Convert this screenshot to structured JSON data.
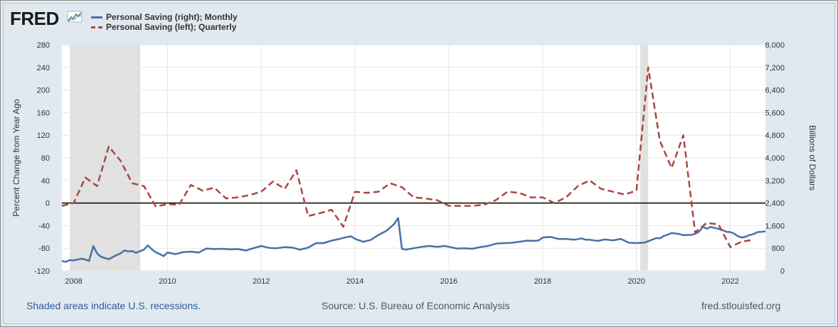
{
  "brand": {
    "name": "FRED"
  },
  "legend": [
    {
      "label": "Personal Saving (right); Monthly",
      "color": "#4572a7",
      "style": "solid"
    },
    {
      "label": "Personal Saving (left); Quarterly",
      "color": "#aa4643",
      "style": "dashed"
    }
  ],
  "footer": {
    "left": "Shaded areas indicate U.S. recessions.",
    "center": "Source: U.S. Bureau of Economic Analysis",
    "right": "fred.stlouisfed.org"
  },
  "chart_data": {
    "type": "line",
    "title": "",
    "xlabel": "",
    "ylabel_left": "Percent Change from Year Ago",
    "ylabel_right": "Billions of Dollars",
    "xlim": [
      2007.75,
      2022.75
    ],
    "ylim_left": [
      -120,
      280
    ],
    "ylim_right": [
      0,
      8000
    ],
    "x_ticks": [
      2008,
      2010,
      2012,
      2014,
      2016,
      2018,
      2020,
      2022
    ],
    "x_tick_labels": [
      "2008",
      "2010",
      "2012",
      "2014",
      "2016",
      "2018",
      "2020",
      "2022"
    ],
    "y_ticks_left": [
      -120,
      -80,
      -40,
      0,
      40,
      80,
      120,
      160,
      200,
      240,
      280
    ],
    "y_tick_labels_left": [
      "-120",
      "-80",
      "-40",
      "0",
      "40",
      "80",
      "120",
      "160",
      "200",
      "240",
      "280"
    ],
    "y_ticks_right": [
      0,
      800,
      1600,
      2400,
      3200,
      4000,
      4800,
      5600,
      6400,
      7200,
      8000
    ],
    "y_tick_labels_right": [
      "0",
      "800",
      "1,600",
      "2,400",
      "3,200",
      "4,000",
      "4,800",
      "5,600",
      "6,400",
      "7,200",
      "8,000"
    ],
    "grid": true,
    "zero_line_left": 0,
    "recessions": [
      [
        2007.92,
        2009.42
      ],
      [
        2020.08,
        2020.25
      ]
    ],
    "legend_position": "top-left",
    "series": [
      {
        "name": "Personal Saving (right); Monthly",
        "axis": "right",
        "color": "#4572a7",
        "style": "solid",
        "points": [
          [
            2007.75,
            350
          ],
          [
            2007.83,
            320
          ],
          [
            2007.92,
            380
          ],
          [
            2008.0,
            370
          ],
          [
            2008.08,
            400
          ],
          [
            2008.17,
            430
          ],
          [
            2008.25,
            400
          ],
          [
            2008.33,
            350
          ],
          [
            2008.42,
            880
          ],
          [
            2008.5,
            620
          ],
          [
            2008.58,
            500
          ],
          [
            2008.67,
            450
          ],
          [
            2008.75,
            410
          ],
          [
            2008.83,
            480
          ],
          [
            2008.92,
            560
          ],
          [
            2009.0,
            620
          ],
          [
            2009.08,
            720
          ],
          [
            2009.17,
            690
          ],
          [
            2009.25,
            700
          ],
          [
            2009.33,
            640
          ],
          [
            2009.42,
            700
          ],
          [
            2009.5,
            750
          ],
          [
            2009.58,
            900
          ],
          [
            2009.67,
            760
          ],
          [
            2009.75,
            660
          ],
          [
            2009.83,
            600
          ],
          [
            2009.92,
            520
          ],
          [
            2010.0,
            650
          ],
          [
            2010.17,
            590
          ],
          [
            2010.33,
            660
          ],
          [
            2010.5,
            680
          ],
          [
            2010.67,
            650
          ],
          [
            2010.83,
            790
          ],
          [
            2011.0,
            770
          ],
          [
            2011.17,
            780
          ],
          [
            2011.33,
            760
          ],
          [
            2011.5,
            770
          ],
          [
            2011.67,
            720
          ],
          [
            2011.83,
            800
          ],
          [
            2012.0,
            880
          ],
          [
            2012.17,
            810
          ],
          [
            2012.33,
            800
          ],
          [
            2012.5,
            840
          ],
          [
            2012.67,
            820
          ],
          [
            2012.83,
            750
          ],
          [
            2013.0,
            820
          ],
          [
            2013.17,
            980
          ],
          [
            2013.33,
            980
          ],
          [
            2013.5,
            1070
          ],
          [
            2013.67,
            1130
          ],
          [
            2013.83,
            1200
          ],
          [
            2013.92,
            1220
          ],
          [
            2014.0,
            1130
          ],
          [
            2014.17,
            1030
          ],
          [
            2014.33,
            1090
          ],
          [
            2014.5,
            1270
          ],
          [
            2014.67,
            1420
          ],
          [
            2014.83,
            1650
          ],
          [
            2014.92,
            1870
          ],
          [
            2015.0,
            780
          ],
          [
            2015.08,
            750
          ],
          [
            2015.25,
            800
          ],
          [
            2015.42,
            850
          ],
          [
            2015.58,
            880
          ],
          [
            2015.75,
            850
          ],
          [
            2015.92,
            880
          ],
          [
            2016.0,
            850
          ],
          [
            2016.17,
            790
          ],
          [
            2016.33,
            800
          ],
          [
            2016.5,
            780
          ],
          [
            2016.67,
            840
          ],
          [
            2016.83,
            880
          ],
          [
            2016.92,
            920
          ],
          [
            2017.0,
            960
          ],
          [
            2017.17,
            980
          ],
          [
            2017.33,
            990
          ],
          [
            2017.5,
            1030
          ],
          [
            2017.67,
            1070
          ],
          [
            2017.83,
            1060
          ],
          [
            2017.92,
            1080
          ],
          [
            2018.0,
            1180
          ],
          [
            2018.17,
            1200
          ],
          [
            2018.33,
            1130
          ],
          [
            2018.5,
            1130
          ],
          [
            2018.67,
            1100
          ],
          [
            2018.83,
            1150
          ],
          [
            2018.92,
            1100
          ],
          [
            2019.0,
            1100
          ],
          [
            2019.17,
            1060
          ],
          [
            2019.33,
            1110
          ],
          [
            2019.5,
            1080
          ],
          [
            2019.67,
            1130
          ],
          [
            2019.83,
            1000
          ],
          [
            2020.0,
            980
          ],
          [
            2020.17,
            1000
          ],
          [
            2020.33,
            1100
          ],
          [
            2020.42,
            1160
          ],
          [
            2020.5,
            1150
          ],
          [
            2020.58,
            1230
          ],
          [
            2020.67,
            1280
          ],
          [
            2020.75,
            1340
          ],
          [
            2020.83,
            1320
          ],
          [
            2020.92,
            1300
          ],
          [
            2021.0,
            1260
          ],
          [
            2021.08,
            1270
          ],
          [
            2021.17,
            1270
          ],
          [
            2021.25,
            1310
          ],
          [
            2021.33,
            1380
          ],
          [
            2021.42,
            1560
          ],
          [
            2021.5,
            1490
          ],
          [
            2021.58,
            1550
          ],
          [
            2021.67,
            1520
          ],
          [
            2021.83,
            1450
          ],
          [
            2021.92,
            1380
          ],
          [
            2022.0,
            1370
          ],
          [
            2022.08,
            1320
          ],
          [
            2022.17,
            1220
          ],
          [
            2022.25,
            1180
          ],
          [
            2022.33,
            1210
          ],
          [
            2022.42,
            1270
          ],
          [
            2022.5,
            1300
          ],
          [
            2022.58,
            1370
          ],
          [
            2022.67,
            1380
          ],
          [
            2022.75,
            1400
          ]
        ]
      },
      {
        "name": "Personal Saving (left); Quarterly",
        "axis": "left",
        "color": "#aa4643",
        "style": "dashed",
        "points": [
          [
            2007.75,
            -5
          ],
          [
            2008.0,
            0
          ],
          [
            2008.25,
            45
          ],
          [
            2008.5,
            30
          ],
          [
            2008.75,
            100
          ],
          [
            2009.0,
            75
          ],
          [
            2009.25,
            35
          ],
          [
            2009.5,
            30
          ],
          [
            2009.75,
            -6
          ],
          [
            2010.0,
            -2
          ],
          [
            2010.25,
            -3
          ],
          [
            2010.5,
            32
          ],
          [
            2010.75,
            22
          ],
          [
            2011.0,
            27
          ],
          [
            2011.25,
            8
          ],
          [
            2011.5,
            10
          ],
          [
            2011.75,
            14
          ],
          [
            2012.0,
            20
          ],
          [
            2012.25,
            38
          ],
          [
            2012.5,
            25
          ],
          [
            2012.75,
            58
          ],
          [
            2013.0,
            -23
          ],
          [
            2013.25,
            -18
          ],
          [
            2013.5,
            -12
          ],
          [
            2013.75,
            -42
          ],
          [
            2014.0,
            20
          ],
          [
            2014.25,
            18
          ],
          [
            2014.5,
            20
          ],
          [
            2014.75,
            35
          ],
          [
            2015.0,
            28
          ],
          [
            2015.25,
            10
          ],
          [
            2015.5,
            8
          ],
          [
            2015.75,
            5
          ],
          [
            2016.0,
            -5
          ],
          [
            2016.25,
            -5
          ],
          [
            2016.5,
            -5
          ],
          [
            2016.75,
            -3
          ],
          [
            2017.0,
            5
          ],
          [
            2017.25,
            20
          ],
          [
            2017.5,
            18
          ],
          [
            2017.75,
            10
          ],
          [
            2018.0,
            10
          ],
          [
            2018.25,
            0
          ],
          [
            2018.5,
            10
          ],
          [
            2018.75,
            30
          ],
          [
            2019.0,
            40
          ],
          [
            2019.25,
            25
          ],
          [
            2019.5,
            20
          ],
          [
            2019.75,
            15
          ],
          [
            2020.0,
            22
          ],
          [
            2020.25,
            240
          ],
          [
            2020.5,
            110
          ],
          [
            2020.75,
            62
          ],
          [
            2021.0,
            120
          ],
          [
            2021.25,
            -52
          ],
          [
            2021.5,
            -35
          ],
          [
            2021.75,
            -38
          ],
          [
            2022.0,
            -78
          ],
          [
            2022.25,
            -68
          ],
          [
            2022.5,
            -65
          ]
        ]
      }
    ]
  }
}
